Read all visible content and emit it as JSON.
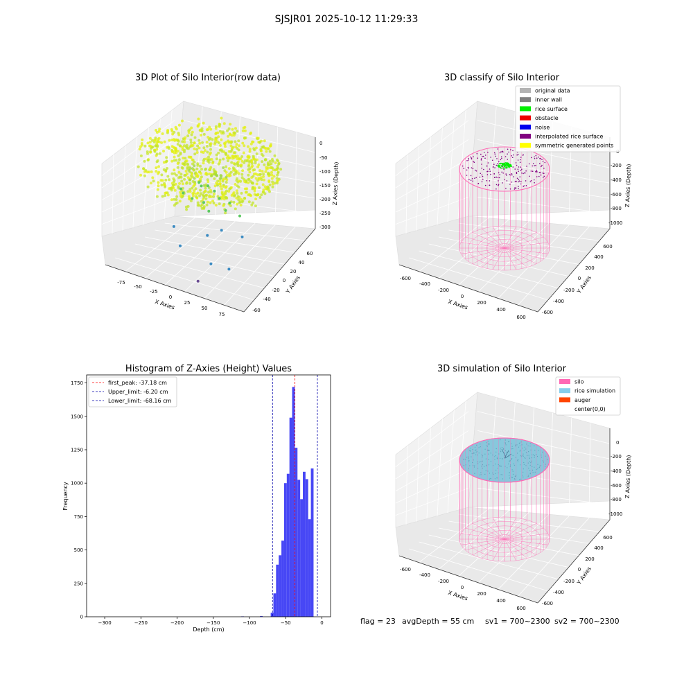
{
  "figure_title": "SJSJR01 2025-10-12 11:29:33",
  "chart_data": [
    {
      "type": "scatter",
      "title": "3D Plot of Silo Interior(row data)",
      "xlabel": "X Axies",
      "ylabel": "Y Axies",
      "zlabel": "Z Axies (Depth)",
      "x_ticks": [
        "-75",
        "-50",
        "-25",
        "0",
        "25",
        "50",
        "75"
      ],
      "y_ticks": [
        "-60",
        "-40",
        "-20",
        "0",
        "20",
        "40",
        "60"
      ],
      "z_ticks": [
        "0",
        "-50",
        "-100",
        "-150",
        "-200",
        "-250",
        "-300"
      ],
      "xlim": [
        -90,
        90
      ],
      "ylim": [
        -65,
        70
      ],
      "zlim": [
        -330,
        10
      ],
      "grid": true,
      "colors": {
        "high": "#e3f010",
        "mid": "#5ec962",
        "low": "#3b8bc2",
        "lowest": "#6a4c93"
      },
      "scattered_points": [
        {
          "x": -10,
          "y": 0,
          "z": -135
        },
        {
          "x": -5,
          "y": 5,
          "z": -140
        },
        {
          "x": 5,
          "y": 3,
          "z": -145
        },
        {
          "x": 15,
          "y": -2,
          "z": -150
        },
        {
          "x": -20,
          "y": 10,
          "z": -152
        },
        {
          "x": -15,
          "y": -10,
          "z": -160
        },
        {
          "x": -30,
          "y": -5,
          "z": -165
        },
        {
          "x": 0,
          "y": -10,
          "z": -160
        },
        {
          "x": 10,
          "y": -15,
          "z": -170
        },
        {
          "x": 25,
          "y": -5,
          "z": -175
        },
        {
          "x": -40,
          "y": 5,
          "z": -180
        },
        {
          "x": 20,
          "y": 10,
          "z": -185
        },
        {
          "x": 40,
          "y": 0,
          "z": -190
        },
        {
          "x": 30,
          "y": -20,
          "z": -205
        },
        {
          "x": -25,
          "y": -30,
          "z": -220
        },
        {
          "x": 15,
          "y": -25,
          "z": -225
        },
        {
          "x": 50,
          "y": -10,
          "z": -230
        },
        {
          "x": -10,
          "y": -40,
          "z": -250
        },
        {
          "x": 30,
          "y": -40,
          "z": -275
        },
        {
          "x": 50,
          "y": -35,
          "z": -285
        },
        {
          "x": 20,
          "y": -50,
          "z": -320
        }
      ]
    },
    {
      "type": "scatter",
      "title": "3D classify of Silo Interior",
      "xlabel": "X Axies",
      "ylabel": "Y Axies",
      "zlabel": "Z Axies (Depth)",
      "x_ticks": [
        "-600",
        "-400",
        "-200",
        "0",
        "200",
        "400",
        "600"
      ],
      "y_ticks": [
        "-600",
        "-400",
        "-200",
        "0",
        "200",
        "400",
        "600"
      ],
      "z_ticks": [
        "0",
        "-200",
        "-400",
        "-600",
        "-800",
        "-1000"
      ],
      "xlim": [
        -650,
        650
      ],
      "ylim": [
        -650,
        650
      ],
      "zlim": [
        -1100,
        50
      ],
      "grid": true,
      "legend_placement": "top-right",
      "legend": [
        {
          "label": "original data",
          "color": "#b3b3b3"
        },
        {
          "label": "inner wall",
          "color": "#808080"
        },
        {
          "label": "rice surface",
          "color": "#00ee00"
        },
        {
          "label": "obstacle",
          "color": "#ee0000"
        },
        {
          "label": "noise",
          "color": "#0000ee"
        },
        {
          "label": "interpolated rice surface",
          "color": "#800080"
        },
        {
          "label": "symmetric generated points",
          "color": "#ffff00"
        }
      ],
      "silo": {
        "radius": 600,
        "z_top": -110,
        "z_bottom": -1000,
        "color": "#ff69b4"
      }
    },
    {
      "type": "bar",
      "title": "Histogram of Z-Axies (Height) Values",
      "xlabel": "Depth (cm)",
      "ylabel": "Frequency",
      "xlim": [
        -325,
        12
      ],
      "ylim": [
        0,
        1810
      ],
      "x_ticks": [
        -300,
        -250,
        -200,
        -150,
        -100,
        -50,
        0
      ],
      "y_ticks": [
        0,
        250,
        500,
        750,
        1000,
        1250,
        1500,
        1750
      ],
      "bin_width": 3.7,
      "bar_color": "#4747f5",
      "bins": [
        {
          "x": -111.4,
          "value": 3
        },
        {
          "x": -85.5,
          "value": 5
        },
        {
          "x": -70.7,
          "value": 30
        },
        {
          "x": -67.0,
          "value": 175
        },
        {
          "x": -63.3,
          "value": 390
        },
        {
          "x": -59.6,
          "value": 460
        },
        {
          "x": -55.9,
          "value": 570
        },
        {
          "x": -52.2,
          "value": 1000
        },
        {
          "x": -48.5,
          "value": 1070
        },
        {
          "x": -44.8,
          "value": 1490
        },
        {
          "x": -41.1,
          "value": 1720
        },
        {
          "x": -37.4,
          "value": 1265
        },
        {
          "x": -33.7,
          "value": 1025
        },
        {
          "x": -30.0,
          "value": 880
        },
        {
          "x": -26.3,
          "value": 1085
        },
        {
          "x": -22.6,
          "value": 1030
        },
        {
          "x": -18.9,
          "value": 730
        },
        {
          "x": -15.2,
          "value": 1110
        }
      ],
      "lines": [
        {
          "label": "first_peak: -37.18 cm",
          "value": -37.18,
          "color": "#ff0000"
        },
        {
          "label": "Upper_limit: -6.20 cm",
          "value": -6.2,
          "color": "#0000aa"
        },
        {
          "label": "Lower_limit: -68.16 cm",
          "value": -68.16,
          "color": "#0000aa"
        }
      ],
      "legend_placement": "top-left"
    },
    {
      "type": "scatter",
      "title": "3D simulation of Silo Interior",
      "xlabel": "X Axies",
      "ylabel": "Y Axies",
      "zlabel": "Z Axies (Depth)",
      "x_ticks": [
        "-600",
        "-400",
        "-200",
        "0",
        "200",
        "400",
        "600"
      ],
      "y_ticks": [
        "-600",
        "-400",
        "-200",
        "0",
        "200",
        "400",
        "600"
      ],
      "z_ticks": [
        "0",
        "-200",
        "-400",
        "-600",
        "-800",
        "-1000"
      ],
      "xlim": [
        -650,
        650
      ],
      "ylim": [
        -650,
        650
      ],
      "zlim": [
        -1100,
        50
      ],
      "grid": true,
      "legend_placement": "top-right",
      "legend": [
        {
          "label": "silo",
          "color": "#ff69b4"
        },
        {
          "label": "rice simulation",
          "color": "#87ceeb"
        },
        {
          "label": "auger",
          "color": "#ff4500"
        },
        {
          "label": "center(0,0)",
          "color": "#ffffff"
        }
      ],
      "silo": {
        "radius": 600,
        "z_top": -110,
        "z_bottom": -1000,
        "color": "#ff69b4"
      },
      "rice_color": "#87c8dc"
    }
  ],
  "status": {
    "flag": "flag = 23",
    "avg_depth": "avgDepth = 55 cm",
    "sv1": "sv1 = 700~2300",
    "sv2": "sv2 = 700~2300"
  }
}
